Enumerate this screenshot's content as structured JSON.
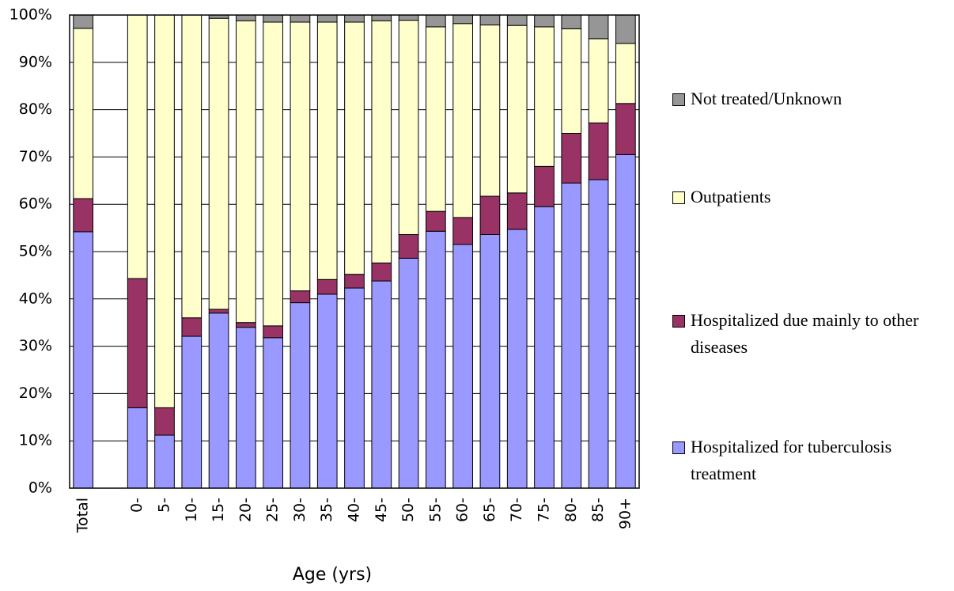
{
  "chart_data": {
    "type": "stacked-bar",
    "x_label": "Age (yrs)",
    "categories": [
      "Total",
      null,
      "0-",
      "5-",
      "10-",
      "15-",
      "20-",
      "25-",
      "30-",
      "35-",
      "40-",
      "45-",
      "50-",
      "55-",
      "60-",
      "65-",
      "70-",
      "75-",
      "80-",
      "85-",
      "90+"
    ],
    "series": [
      {
        "name": "Hospitalized for tuberculosis treatment",
        "color": "#9999ff",
        "values": [
          54.2,
          null,
          17,
          11.2,
          32.1,
          37,
          34,
          31.8,
          39.2,
          41,
          42.3,
          43.8,
          48.6,
          54.3,
          51.5,
          53.6,
          54.7,
          59.5,
          64.5,
          65.2,
          70.5
        ]
      },
      {
        "name": "Hospitalized due mainly to other diseases",
        "color": "#993366",
        "values": [
          7,
          null,
          27.3,
          5.8,
          3.9,
          0.8,
          1,
          2.5,
          2.5,
          3.1,
          2.9,
          3.8,
          5,
          4.2,
          5.7,
          8.1,
          7.7,
          8.5,
          10.5,
          12,
          10.8
        ]
      },
      {
        "name": "Outpatients",
        "color": "#ffffcc",
        "values": [
          36,
          null,
          55.7,
          83,
          64,
          61.5,
          63.8,
          64.2,
          56.8,
          54.4,
          53.3,
          51.2,
          45.3,
          39,
          41,
          36.2,
          35.4,
          29.5,
          22.1,
          17.8,
          12.7
        ]
      },
      {
        "name": "Not treated/Unknown",
        "color": "#969696",
        "values": [
          2.8,
          null,
          0,
          0,
          0,
          0.7,
          1.2,
          1.5,
          1.5,
          1.5,
          1.5,
          1.2,
          1.1,
          2.5,
          1.8,
          2.1,
          2.2,
          2.5,
          2.9,
          5,
          6
        ]
      }
    ],
    "ylim": [
      0,
      100
    ],
    "yticks": [
      {
        "value": 0,
        "label": "0%"
      },
      {
        "value": 10,
        "label": "10%"
      },
      {
        "value": 20,
        "label": "20%"
      },
      {
        "value": 30,
        "label": "30%"
      },
      {
        "value": 40,
        "label": "40%"
      },
      {
        "value": 50,
        "label": "50%"
      },
      {
        "value": 60,
        "label": "60%"
      },
      {
        "value": 70,
        "label": "70%"
      },
      {
        "value": 80,
        "label": "80%"
      },
      {
        "value": 90,
        "label": "90%"
      },
      {
        "value": 100,
        "label": "100%"
      }
    ],
    "grid": true
  }
}
